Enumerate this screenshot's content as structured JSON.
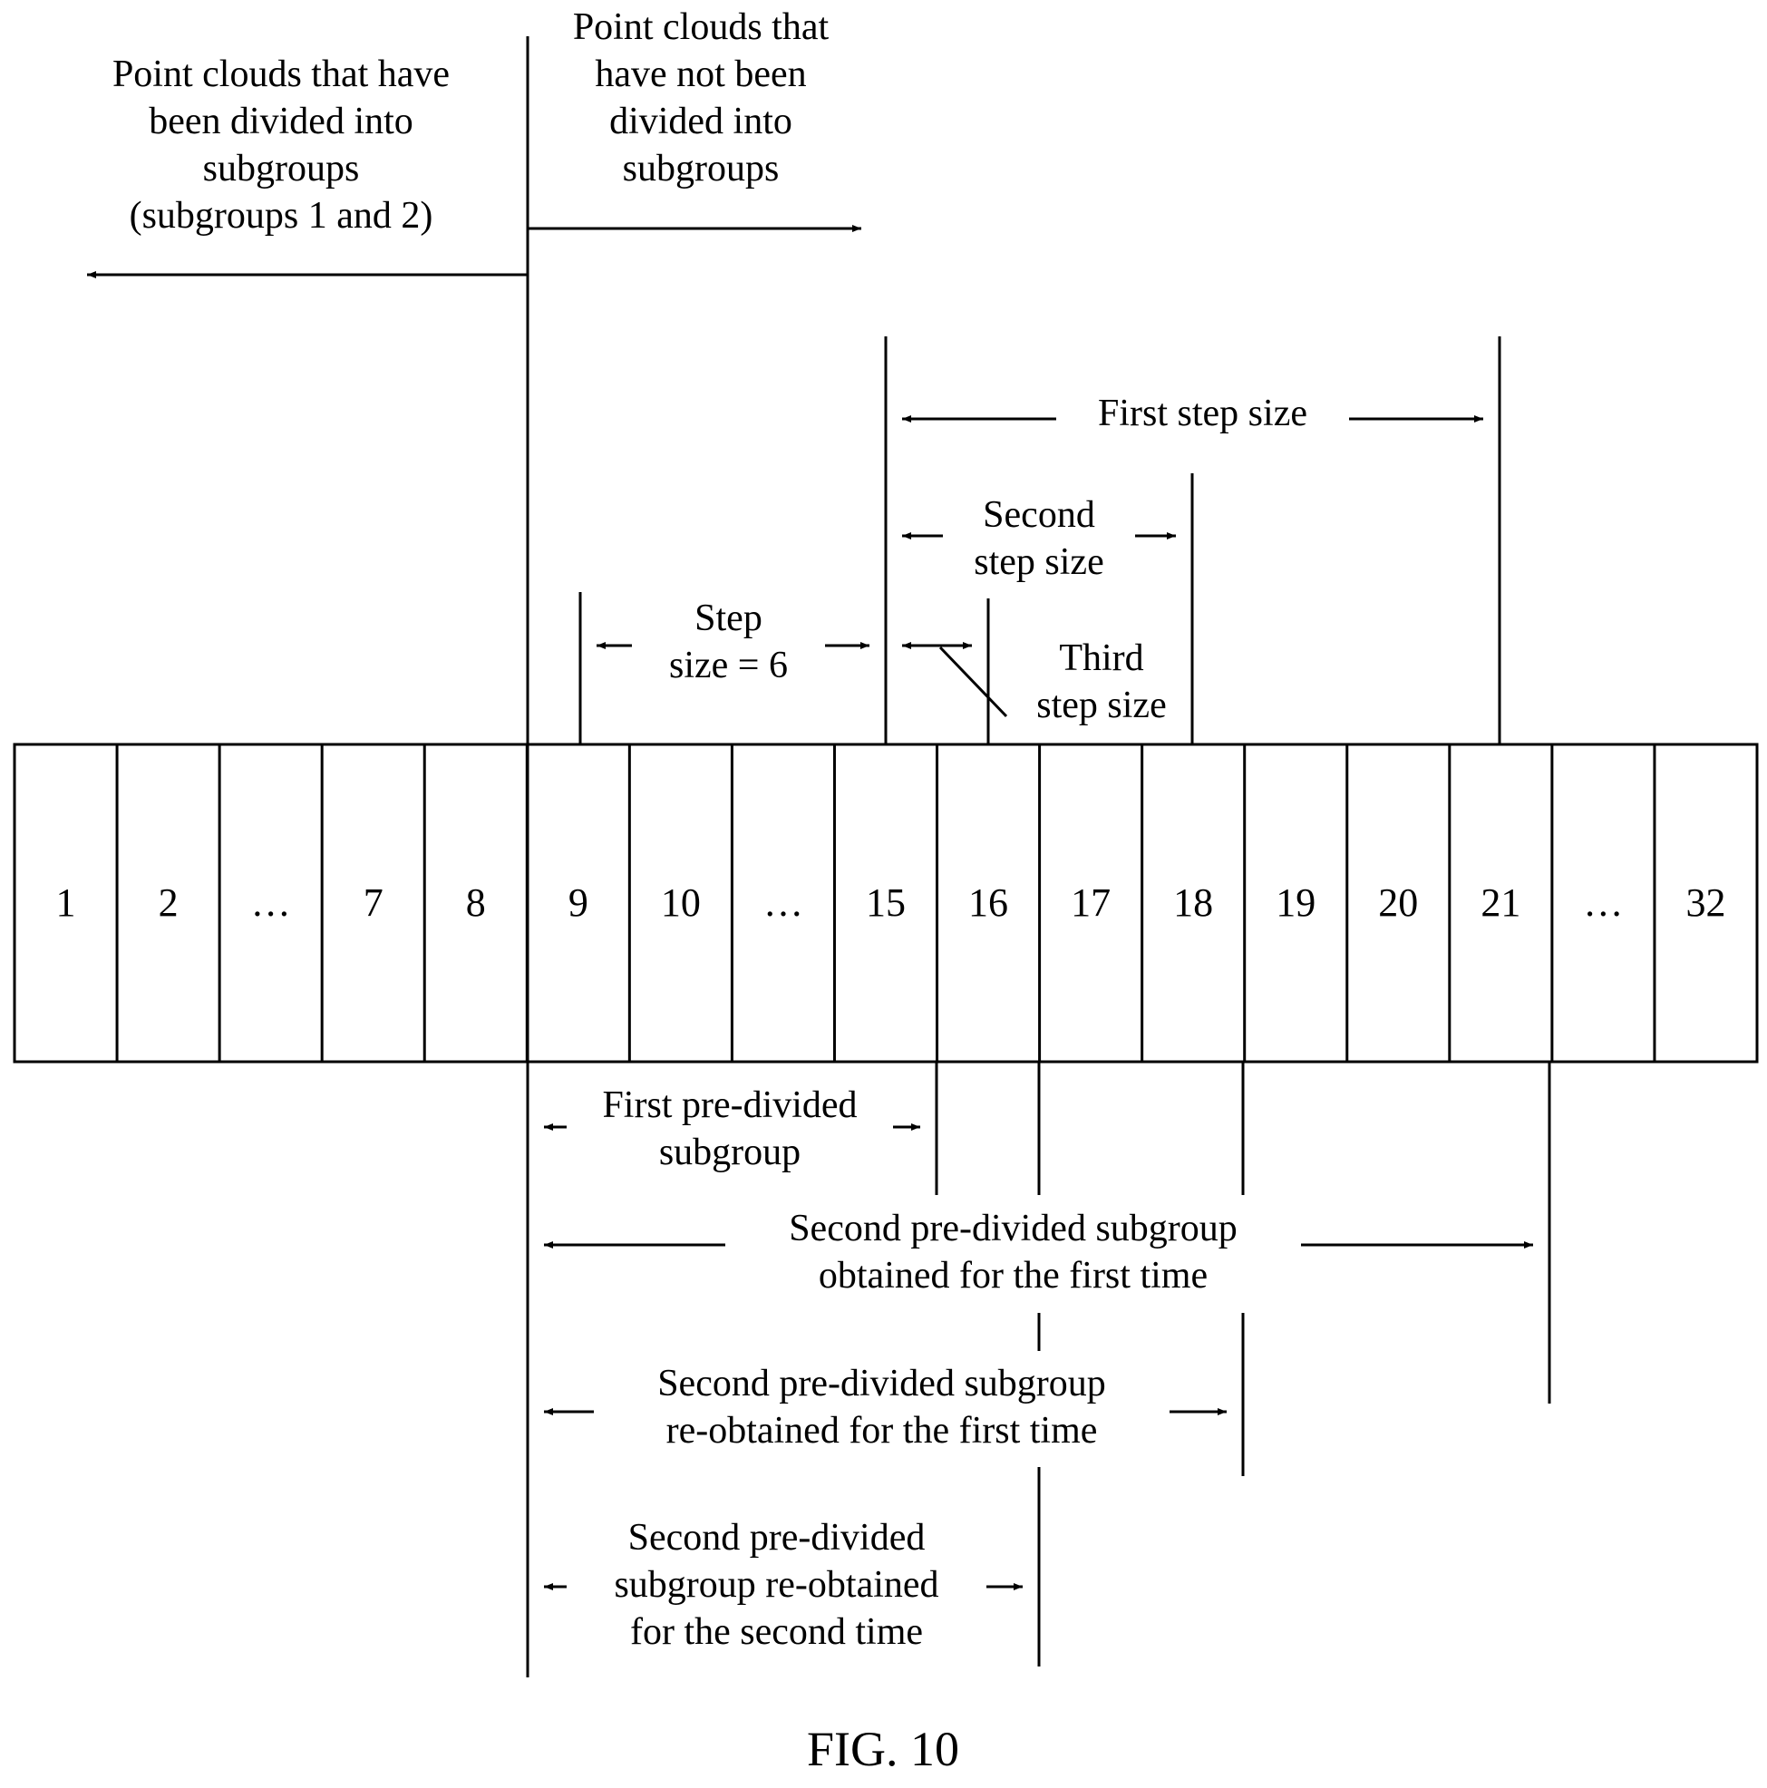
{
  "cells": [
    "1",
    "2",
    "…",
    "7",
    "8",
    "9",
    "10",
    "…",
    "15",
    "16",
    "17",
    "18",
    "19",
    "20",
    "21",
    "…",
    "32"
  ],
  "labels": {
    "divided": "Point clouds that have\nbeen divided into\nsubgroups\n(subgroups 1 and 2)",
    "not_divided": "Point clouds that\nhave not been\ndivided into\nsubgroups",
    "first_step": "First step size",
    "second_step": "Second\nstep size",
    "step6": "Step\nsize = 6",
    "third_step": "Third\nstep size",
    "first_pre": "First pre-divided\nsubgroup",
    "second_pre_first": "Second pre-divided subgroup\nobtained for the first time",
    "second_pre_re1": "Second pre-divided subgroup\nre-obtained for the first time",
    "second_pre_re2": "Second pre-divided\nsubgroup re-obtained\nfor the second time"
  },
  "caption": "FIG. 10"
}
